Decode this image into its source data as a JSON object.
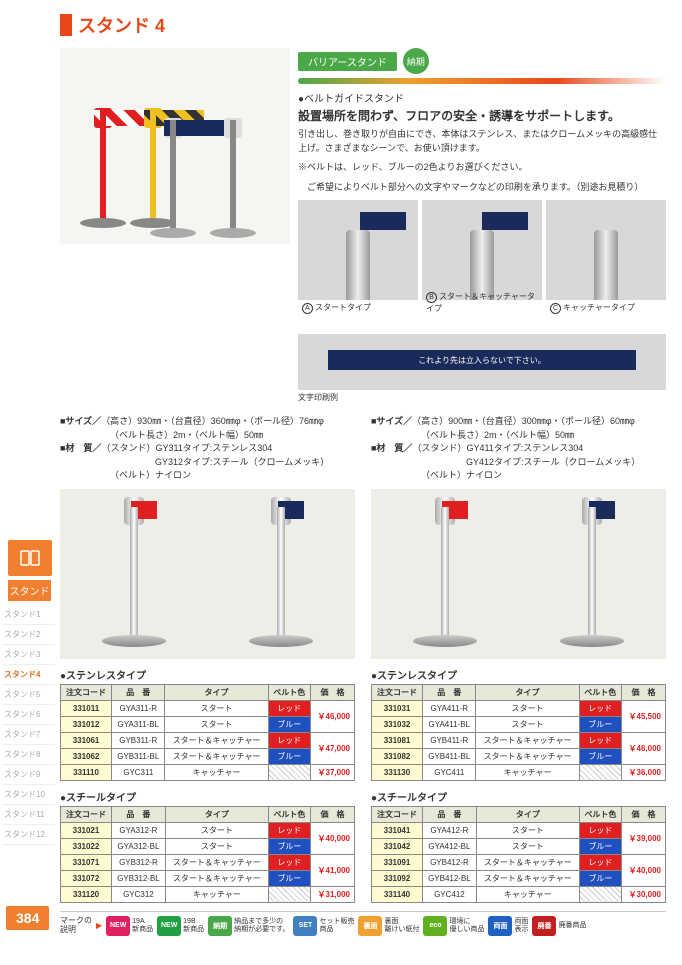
{
  "page_number": "384",
  "title": "スタンド 4",
  "sidebar": {
    "main_label": "スタンド",
    "items": [
      "スタンド1",
      "スタンド2",
      "スタンド3",
      "スタンド4",
      "スタンド5",
      "スタンド6",
      "スタンド7",
      "スタンド8",
      "スタンド9",
      "スタンド10",
      "スタンド11",
      "スタンド12"
    ],
    "active_index": 3
  },
  "barrier": {
    "badge": "バリアースタンド",
    "badge_icon": "納期",
    "sub_title": "●ベルトガイドスタンド",
    "headline": "設置場所を問わず、フロアの安全・誘導をサポートします。",
    "desc1": "引き出し、巻き取りが自由にでき、本体はステンレス、またはクロームメッキの高級感仕上げ。さまざまなシーンで、お使い頂けます。",
    "desc2": "※ベルトは、レッド、ブルーの2色よりお選びください。",
    "desc3": "　ご希望によりベルト部分への文字やマークなどの印刷を承ります。（別途お見積り）",
    "types": [
      {
        "letter": "A",
        "label": "スタートタイプ"
      },
      {
        "letter": "B",
        "label": "スタート＆キャッチャータイプ"
      },
      {
        "letter": "C",
        "label": "キャッチャータイプ"
      }
    ],
    "print_text": "これより先は立入らないで下さい。",
    "print_label": "文字印刷例"
  },
  "specs": {
    "left": {
      "size1": "（高さ）930㎜・（台直径）360㎜φ・（ポール径）76㎜φ",
      "size2": "（ベルト長さ）2m・（ベルト幅）50㎜",
      "mat1": "（スタンド）GY311タイプ:ステンレス304",
      "mat2": "　　　　　GY312タイプ:スチール（クロームメッキ）",
      "mat3": "（ベルト）ナイロン"
    },
    "right": {
      "size1": "（高さ）900㎜・（台直径）300㎜φ・（ポール径）60㎜φ",
      "size2": "（ベルト長さ）2m・（ベルト幅）50㎜",
      "mat1": "（スタンド）GY411タイプ:ステンレス304",
      "mat2": "　　　　　GY412タイプ:スチール（クロームメッキ）",
      "mat3": "（ベルト）ナイロン"
    },
    "size_label": "■サイズ／",
    "mat_label": "■材　質／"
  },
  "table_headers": [
    "注文コード",
    "品　番",
    "タイプ",
    "ベルト色",
    "価　格"
  ],
  "tables": {
    "left_stainless": {
      "title": "●ステンレスタイプ",
      "rows": [
        {
          "code": "331011",
          "model": "GYA311-R",
          "type": "スタート",
          "belt": "レッド",
          "belt_class": "red",
          "price": "￥46,000",
          "rowspan": 2
        },
        {
          "code": "331012",
          "model": "GYA311-BL",
          "type": "スタート",
          "belt": "ブルー",
          "belt_class": "blue"
        },
        {
          "code": "331061",
          "model": "GYB311-R",
          "type": "スタート＆キャッチャー",
          "belt": "レッド",
          "belt_class": "red",
          "price": "￥47,000",
          "rowspan": 2
        },
        {
          "code": "331062",
          "model": "GYB311-BL",
          "type": "スタート＆キャッチャー",
          "belt": "ブルー",
          "belt_class": "blue"
        },
        {
          "code": "331110",
          "model": "GYC311",
          "type": "キャッチャー",
          "belt": "",
          "belt_class": "none",
          "price": "￥37,000",
          "rowspan": 1
        }
      ]
    },
    "right_stainless": {
      "title": "●ステンレスタイプ",
      "rows": [
        {
          "code": "331031",
          "model": "GYA411-R",
          "type": "スタート",
          "belt": "レッド",
          "belt_class": "red",
          "price": "￥45,500",
          "rowspan": 2
        },
        {
          "code": "331032",
          "model": "GYA411-BL",
          "type": "スタート",
          "belt": "ブルー",
          "belt_class": "blue"
        },
        {
          "code": "331081",
          "model": "GYB411-R",
          "type": "スタート＆キャッチャー",
          "belt": "レッド",
          "belt_class": "red",
          "price": "￥46,000",
          "rowspan": 2
        },
        {
          "code": "331082",
          "model": "GYB411-BL",
          "type": "スタート＆キャッチャー",
          "belt": "ブルー",
          "belt_class": "blue"
        },
        {
          "code": "331130",
          "model": "GYC411",
          "type": "キャッチャー",
          "belt": "",
          "belt_class": "none",
          "price": "￥36,000",
          "rowspan": 1
        }
      ]
    },
    "left_steel": {
      "title": "●スチールタイプ",
      "rows": [
        {
          "code": "331021",
          "model": "GYA312-R",
          "type": "スタート",
          "belt": "レッド",
          "belt_class": "red",
          "price": "￥40,000",
          "rowspan": 2
        },
        {
          "code": "331022",
          "model": "GYA312-BL",
          "type": "スタート",
          "belt": "ブルー",
          "belt_class": "blue"
        },
        {
          "code": "331071",
          "model": "GYB312-R",
          "type": "スタート＆キャッチャー",
          "belt": "レッド",
          "belt_class": "red",
          "price": "￥41,000",
          "rowspan": 2
        },
        {
          "code": "331072",
          "model": "GYB312-BL",
          "type": "スタート＆キャッチャー",
          "belt": "ブルー",
          "belt_class": "blue"
        },
        {
          "code": "331120",
          "model": "GYC312",
          "type": "キャッチャー",
          "belt": "",
          "belt_class": "none",
          "price": "￥31,000",
          "rowspan": 1
        }
      ]
    },
    "right_steel": {
      "title": "●スチールタイプ",
      "rows": [
        {
          "code": "331041",
          "model": "GYA412-R",
          "type": "スタート",
          "belt": "レッド",
          "belt_class": "red",
          "price": "￥39,000",
          "rowspan": 2
        },
        {
          "code": "331042",
          "model": "GYA412-BL",
          "type": "スタート",
          "belt": "ブルー",
          "belt_class": "blue"
        },
        {
          "code": "331091",
          "model": "GYB412-R",
          "type": "スタート＆キャッチャー",
          "belt": "レッド",
          "belt_class": "red",
          "price": "￥40,000",
          "rowspan": 2
        },
        {
          "code": "331092",
          "model": "GYB412-BL",
          "type": "スタート＆キャッチャー",
          "belt": "ブルー",
          "belt_class": "blue"
        },
        {
          "code": "331140",
          "model": "GYC412",
          "type": "キャッチャー",
          "belt": "",
          "belt_class": "none",
          "price": "￥30,000",
          "rowspan": 1
        }
      ]
    }
  },
  "footer": {
    "intro": "マークの\n説明",
    "items": [
      {
        "label": "19A\n新商品",
        "bg": "#e02060",
        "text": "NEW"
      },
      {
        "label": "19B\n新商品",
        "bg": "#20a040",
        "text": "NEW"
      },
      {
        "label": "納品まで多少の\n納期が必要です。",
        "bg": "#4aa848",
        "text": "納期"
      },
      {
        "label": "セット販売\n商品",
        "bg": "#4080c0",
        "text": "SET"
      },
      {
        "label": "裏面\n離けい紙付",
        "bg": "#f0a030",
        "text": "裏面"
      },
      {
        "label": "環境に\n優しい商品",
        "bg": "#60b020",
        "text": "eco"
      },
      {
        "label": "両面\n表示",
        "bg": "#2060c0",
        "text": "両面"
      },
      {
        "label": "廃番商品",
        "bg": "#c02020",
        "text": "廃番"
      }
    ]
  },
  "colors": {
    "red": "#e02020",
    "blue": "#2050c0",
    "navy": "#1a2a5a",
    "yellow": "#f0c020"
  }
}
